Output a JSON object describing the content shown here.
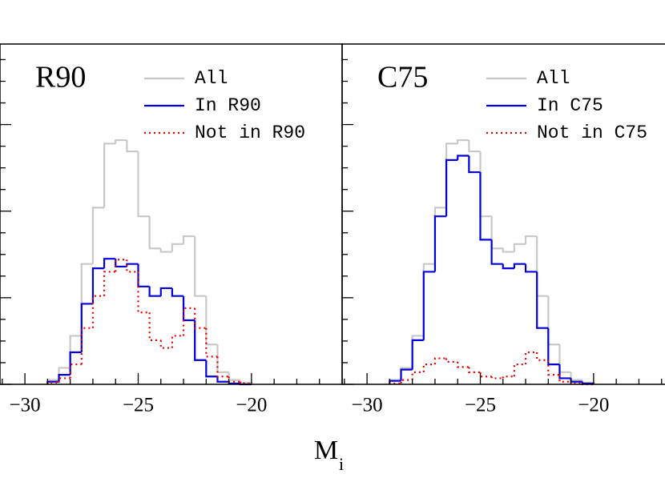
{
  "chart_data": [
    {
      "type": "histogram",
      "panel_label": "R90",
      "xlabel": "M",
      "xlabel_subscript": "i",
      "xlim": [
        -31.1,
        -16
      ],
      "ylim": [
        0,
        3.93
      ],
      "xticks": [
        {
          "value": -30,
          "label": "−30"
        },
        {
          "value": -25,
          "label": "−25"
        },
        {
          "value": -20,
          "label": "−20"
        }
      ],
      "xminorticks": [
        -31,
        -29,
        -28,
        -27,
        -26,
        -24,
        -23,
        -22,
        -21,
        -19,
        -18,
        -17
      ],
      "yticks": [
        0,
        1,
        2,
        3
      ],
      "yminorticks": [
        0.25,
        0.5,
        0.75,
        1.25,
        1.5,
        1.75,
        2.25,
        2.5,
        2.75,
        3.25,
        3.5,
        3.75
      ],
      "bins": [
        -29,
        -28.5,
        -28,
        -27.5,
        -27,
        -26.5,
        -26,
        -25.5,
        -25,
        -24.5,
        -24,
        -23.5,
        -23,
        -22.5,
        -22,
        -21.5,
        -21,
        -20.5,
        -20
      ],
      "series": [
        {
          "name": "All",
          "color": "#c8c8c8",
          "style": "solid",
          "values": [
            0.05,
            0.19,
            0.56,
            1.39,
            2.04,
            2.78,
            2.82,
            2.69,
            1.94,
            1.57,
            1.53,
            1.62,
            1.71,
            1.02,
            0.46,
            0.14,
            0.05,
            0.02
          ]
        },
        {
          "name": "In R90",
          "color": "#0000dd",
          "style": "solid",
          "values": [
            0.03,
            0.11,
            0.37,
            0.93,
            1.34,
            1.45,
            1.36,
            1.39,
            1.13,
            1.02,
            1.11,
            1.02,
            0.74,
            0.28,
            0.09,
            0.03,
            0.01,
            0
          ]
        },
        {
          "name": "Not in R90",
          "color": "#e60000",
          "style": "dotted",
          "values": [
            0.02,
            0.07,
            0.23,
            0.65,
            1.02,
            1.3,
            1.44,
            1.3,
            0.83,
            0.51,
            0.42,
            0.56,
            0.88,
            0.65,
            0.32,
            0.09,
            0.03,
            0.01
          ]
        }
      ]
    },
    {
      "type": "histogram",
      "panel_label": "C75",
      "xlim": [
        -31.1,
        -16
      ],
      "ylim": [
        0,
        3.93
      ],
      "xticks": [
        {
          "value": -30,
          "label": "−30"
        },
        {
          "value": -25,
          "label": "−25"
        },
        {
          "value": -20,
          "label": "−20"
        }
      ],
      "xminorticks": [
        -31,
        -29,
        -28,
        -27,
        -26,
        -24,
        -23,
        -22,
        -21,
        -19,
        -18,
        -17
      ],
      "yticks": [
        0,
        1,
        2,
        3
      ],
      "yminorticks": [
        0.25,
        0.5,
        0.75,
        1.25,
        1.5,
        1.75,
        2.25,
        2.5,
        2.75,
        3.25,
        3.5,
        3.75
      ],
      "bins": [
        -29,
        -28.5,
        -28,
        -27.5,
        -27,
        -26.5,
        -26,
        -25.5,
        -25,
        -24.5,
        -24,
        -23.5,
        -23,
        -22.5,
        -22,
        -21.5,
        -21,
        -20.5,
        -20
      ],
      "series": [
        {
          "name": "All",
          "color": "#c8c8c8",
          "style": "solid",
          "values": [
            0.05,
            0.19,
            0.56,
            1.39,
            2.04,
            2.78,
            2.82,
            2.69,
            1.94,
            1.57,
            1.53,
            1.62,
            1.71,
            1.02,
            0.46,
            0.14,
            0.05,
            0.02
          ]
        },
        {
          "name": "In C75",
          "color": "#0000dd",
          "style": "solid",
          "values": [
            0.04,
            0.17,
            0.51,
            1.3,
            1.94,
            2.59,
            2.64,
            2.45,
            1.67,
            1.39,
            1.34,
            1.39,
            1.3,
            0.65,
            0.23,
            0.07,
            0.03,
            0.01
          ]
        },
        {
          "name": "Not in C75",
          "color": "#e60000",
          "style": "dotted",
          "values": [
            0.01,
            0.05,
            0.14,
            0.23,
            0.3,
            0.26,
            0.2,
            0.14,
            0.09,
            0.07,
            0.09,
            0.23,
            0.37,
            0.28,
            0.11,
            0.03,
            0.01,
            0
          ]
        }
      ]
    }
  ]
}
